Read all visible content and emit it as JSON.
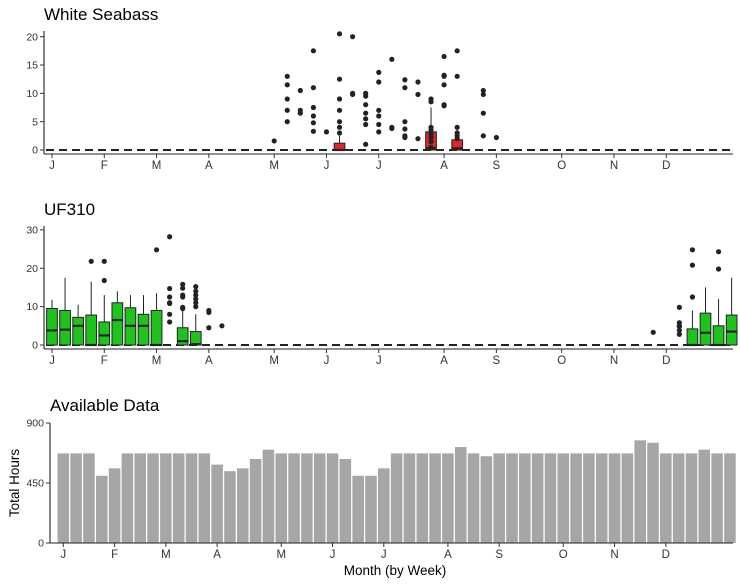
{
  "chart_data": [
    {
      "type": "box",
      "title": "White Seabass",
      "ylim": [
        0,
        21
      ],
      "yticks": [
        0,
        5,
        10,
        15,
        20
      ],
      "month_labels": [
        "J",
        "F",
        "M",
        "A",
        "M",
        "J",
        "J",
        "A",
        "S",
        "O",
        "N",
        "D"
      ],
      "fill_color": "#e8212d",
      "zero_line": 0,
      "boxes": [
        {
          "week": 23,
          "q1": 0,
          "median": 0,
          "q3": 1.2,
          "whisker_low": 0,
          "whisker_high": 2.5
        },
        {
          "week": 30,
          "q1": 0,
          "median": 0.3,
          "q3": 3.2,
          "whisker_low": 0,
          "whisker_high": 7.5
        },
        {
          "week": 32,
          "q1": 0,
          "median": 0.3,
          "q3": 1.8,
          "whisker_low": 0,
          "whisker_high": 3.8
        }
      ],
      "outliers": [
        [
          18,
          1.6
        ],
        [
          19,
          13
        ],
        [
          19,
          11.5
        ],
        [
          19,
          9
        ],
        [
          19,
          7
        ],
        [
          19,
          5
        ],
        [
          20,
          10.5
        ],
        [
          20,
          7
        ],
        [
          20,
          6.5
        ],
        [
          21,
          17.5
        ],
        [
          21,
          11
        ],
        [
          21,
          7.5
        ],
        [
          21,
          6
        ],
        [
          21,
          4.8
        ],
        [
          21,
          3.3
        ],
        [
          22,
          3.2
        ],
        [
          23,
          20.5
        ],
        [
          23,
          12.5
        ],
        [
          23,
          9
        ],
        [
          23,
          7
        ],
        [
          23,
          5
        ],
        [
          23,
          4
        ],
        [
          23,
          3
        ],
        [
          24,
          20
        ],
        [
          24,
          10
        ],
        [
          24,
          9.8
        ],
        [
          25,
          10
        ],
        [
          25,
          9.5
        ],
        [
          25,
          8
        ],
        [
          25,
          6.5
        ],
        [
          25,
          5.5
        ],
        [
          25,
          4.5
        ],
        [
          25,
          1
        ],
        [
          26,
          13.7
        ],
        [
          26,
          12
        ],
        [
          26,
          7
        ],
        [
          26,
          6
        ],
        [
          26,
          4.5
        ],
        [
          26,
          3.2
        ],
        [
          27,
          16
        ],
        [
          27,
          4
        ],
        [
          27,
          3.8
        ],
        [
          28,
          12.4
        ],
        [
          28,
          11
        ],
        [
          28,
          5
        ],
        [
          28,
          3.7
        ],
        [
          28,
          2.5
        ],
        [
          28,
          2.2
        ],
        [
          29,
          12
        ],
        [
          29,
          9.8
        ],
        [
          29,
          2
        ],
        [
          30,
          9
        ],
        [
          30,
          8.5
        ],
        [
          30,
          4
        ],
        [
          30,
          3.5
        ],
        [
          30,
          2.8
        ],
        [
          30,
          2.2
        ],
        [
          30,
          1.5
        ],
        [
          30,
          0.5
        ],
        [
          31,
          16.5
        ],
        [
          31,
          13.2
        ],
        [
          31,
          13
        ],
        [
          31,
          11.5
        ],
        [
          31,
          8
        ],
        [
          31,
          7.8
        ],
        [
          32,
          17.5
        ],
        [
          32,
          13
        ],
        [
          32,
          4
        ],
        [
          32,
          3
        ],
        [
          32,
          2.5
        ],
        [
          32,
          2
        ],
        [
          34,
          10.5
        ],
        [
          34,
          9.8
        ],
        [
          34,
          6.5
        ],
        [
          34,
          2.5
        ],
        [
          35,
          2.2
        ]
      ]
    },
    {
      "type": "box",
      "title": "UF310",
      "ylim": [
        0,
        31
      ],
      "yticks": [
        0,
        10,
        20,
        30
      ],
      "month_labels": [
        "J",
        "F",
        "M",
        "A",
        "M",
        "J",
        "J",
        "A",
        "S",
        "O",
        "N",
        "D"
      ],
      "fill_color": "#1ec31e",
      "zero_line": 0,
      "boxes": [
        {
          "week": 1,
          "q1": 0,
          "median": 3.8,
          "q3": 9.5,
          "whisker_low": 0,
          "whisker_high": 11.8
        },
        {
          "week": 2,
          "q1": 0,
          "median": 4,
          "q3": 9,
          "whisker_low": 0,
          "whisker_high": 17.5
        },
        {
          "week": 3,
          "q1": 0,
          "median": 5,
          "q3": 7.2,
          "whisker_low": 0,
          "whisker_high": 10.5
        },
        {
          "week": 4,
          "q1": 0,
          "median": 0,
          "q3": 7.8,
          "whisker_low": 0,
          "whisker_high": 16.5
        },
        {
          "week": 5,
          "q1": 0,
          "median": 2.5,
          "q3": 6,
          "whisker_low": 0,
          "whisker_high": 13
        },
        {
          "week": 6,
          "q1": 0,
          "median": 6.5,
          "q3": 11,
          "whisker_low": 0,
          "whisker_high": 14
        },
        {
          "week": 7,
          "q1": 0,
          "median": 5,
          "q3": 9.7,
          "whisker_low": 0,
          "whisker_high": 13
        },
        {
          "week": 8,
          "q1": 0,
          "median": 5,
          "q3": 8,
          "whisker_low": 0,
          "whisker_high": 13
        },
        {
          "week": 9,
          "q1": 0,
          "median": 0,
          "q3": 9,
          "whisker_low": 0,
          "whisker_high": 13.5
        },
        {
          "week": 11,
          "q1": 0,
          "median": 1,
          "q3": 4.5,
          "whisker_low": 0,
          "whisker_high": 9.5
        },
        {
          "week": 12,
          "q1": 0,
          "median": 0.2,
          "q3": 3.5,
          "whisker_low": 0,
          "whisker_high": 8
        },
        {
          "week": 50,
          "q1": 0,
          "median": 0,
          "q3": 4.2,
          "whisker_low": 0,
          "whisker_high": 9
        },
        {
          "week": 51,
          "q1": 0,
          "median": 3.2,
          "q3": 8.3,
          "whisker_low": 0,
          "whisker_high": 15
        },
        {
          "week": 52,
          "q1": 0,
          "median": 0,
          "q3": 5,
          "whisker_low": 0,
          "whisker_high": 12
        },
        {
          "week": 53,
          "q1": 0,
          "median": 3.5,
          "q3": 7.8,
          "whisker_low": 0,
          "whisker_high": 17.5
        }
      ],
      "outliers": [
        [
          4,
          21.8
        ],
        [
          5,
          21.8
        ],
        [
          5,
          16.8
        ],
        [
          9,
          24.8
        ],
        [
          10,
          28.2
        ],
        [
          10,
          14.7
        ],
        [
          10,
          12.5
        ],
        [
          10,
          11
        ],
        [
          10,
          10.8
        ],
        [
          10,
          8
        ],
        [
          10,
          6
        ],
        [
          11,
          15.8
        ],
        [
          11,
          14.8
        ],
        [
          11,
          13
        ],
        [
          11,
          12.5
        ],
        [
          11,
          9.8
        ],
        [
          11,
          9.5
        ],
        [
          12,
          15.2
        ],
        [
          12,
          14
        ],
        [
          12,
          13
        ],
        [
          12,
          12
        ],
        [
          12,
          11
        ],
        [
          12,
          10
        ],
        [
          13,
          9
        ],
        [
          13,
          8.5
        ],
        [
          13,
          4.5
        ],
        [
          14,
          5
        ],
        [
          47,
          3.3
        ],
        [
          49,
          9.8
        ],
        [
          49,
          5.8
        ],
        [
          49,
          5
        ],
        [
          49,
          4.8
        ],
        [
          49,
          3.8
        ],
        [
          49,
          2.8
        ],
        [
          50,
          24.8
        ],
        [
          50,
          20.8
        ],
        [
          50,
          12.5
        ],
        [
          52,
          24.3
        ],
        [
          52,
          19.8
        ]
      ]
    },
    {
      "type": "bar",
      "title": "Available Data",
      "ylabel": "Total Hours",
      "xlabel": "Month (by Week)",
      "ylim": [
        0,
        900
      ],
      "yticks": [
        0,
        450,
        900
      ],
      "month_labels": [
        "J",
        "F",
        "M",
        "A",
        "M",
        "J",
        "J",
        "A",
        "S",
        "O",
        "N",
        "D"
      ],
      "bar_color": "#a6a6a6",
      "weeks": [
        1,
        2,
        3,
        4,
        5,
        6,
        7,
        8,
        9,
        10,
        11,
        12,
        13,
        14,
        15,
        16,
        17,
        18,
        19,
        20,
        21,
        22,
        23,
        24,
        25,
        26,
        27,
        28,
        29,
        30,
        31,
        32,
        33,
        34,
        35,
        36,
        37,
        38,
        39,
        40,
        41,
        42,
        43,
        44,
        45,
        46,
        47,
        48,
        49,
        50,
        51,
        52,
        53
      ],
      "values": [
        672,
        672,
        672,
        504,
        560,
        672,
        672,
        672,
        672,
        672,
        672,
        672,
        588,
        539,
        560,
        630,
        700,
        672,
        672,
        672,
        672,
        672,
        630,
        504,
        504,
        560,
        672,
        672,
        672,
        672,
        672,
        720,
        672,
        651,
        672,
        672,
        672,
        672,
        672,
        672,
        672,
        672,
        672,
        672,
        672,
        770,
        752,
        672,
        672,
        672,
        700,
        672,
        672
      ]
    }
  ]
}
